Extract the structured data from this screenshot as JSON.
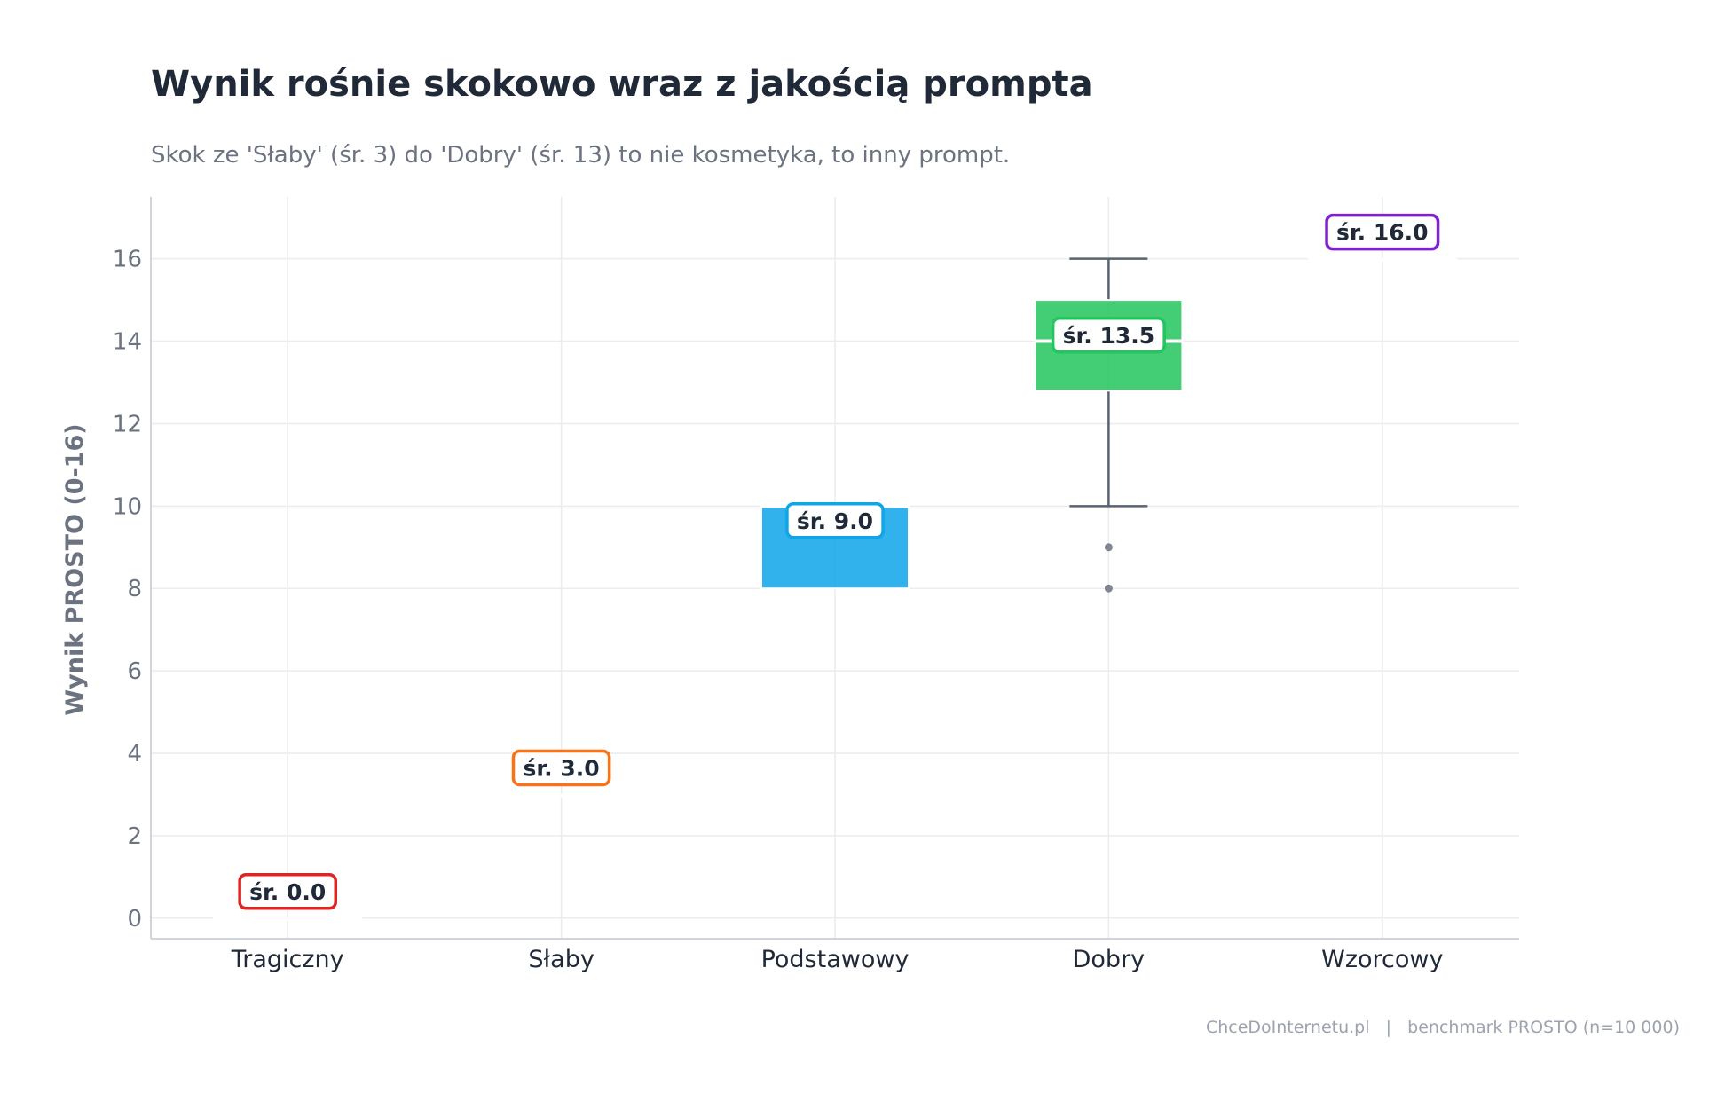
{
  "chart_data": {
    "type": "box",
    "title": "Wynik rośnie skokowo wraz z jakością prompta",
    "subtitle": "Skok ze 'Słaby' (śr. 3) do 'Dobry' (śr. 13) to nie kosmetyka, to inny prompt.",
    "xlabel": "",
    "ylabel": "Wynik PROSTO (0-16)",
    "ylim": [
      -0.5,
      17.5
    ],
    "yticks": [
      0,
      2,
      4,
      6,
      8,
      10,
      12,
      14,
      16
    ],
    "grid": true,
    "categories": [
      "Tragiczny",
      "Słaby",
      "Podstawowy",
      "Dobry",
      "Wzorcowy"
    ],
    "boxes": [
      {
        "category": "Tragiczny",
        "color": "#dc2626",
        "q1": 0,
        "median": 0,
        "q3": 0,
        "whisker_low": 0,
        "whisker_high": 0,
        "outliers": [],
        "mean": 0.0,
        "mean_label": "śr. 0.0"
      },
      {
        "category": "Słaby",
        "color": "#f97316",
        "q1": 3,
        "median": 3,
        "q3": 3,
        "whisker_low": 3,
        "whisker_high": 3,
        "outliers": [],
        "mean": 3.0,
        "mean_label": "śr. 3.0"
      },
      {
        "category": "Podstawowy",
        "color": "#0ea5e9",
        "q1": 8,
        "median": 10,
        "q3": 10,
        "whisker_low": 8,
        "whisker_high": 10,
        "outliers": [],
        "mean": 9.0,
        "mean_label": "śr. 9.0"
      },
      {
        "category": "Dobry",
        "color": "#22c55e",
        "q1": 12.8,
        "median": 14,
        "q3": 15,
        "whisker_low": 10,
        "whisker_high": 16,
        "outliers": [
          9,
          8
        ],
        "mean": 13.5,
        "mean_label": "śr. 13.5"
      },
      {
        "category": "Wzorcowy",
        "color": "#7e22ce",
        "q1": 16,
        "median": 16,
        "q3": 16,
        "whisker_low": 16,
        "whisker_high": 16,
        "outliers": [],
        "mean": 16.0,
        "mean_label": "śr. 16.0"
      }
    ],
    "footer": "ChceDoInternetu.pl   |   benchmark PROSTO (n=10 000)"
  }
}
